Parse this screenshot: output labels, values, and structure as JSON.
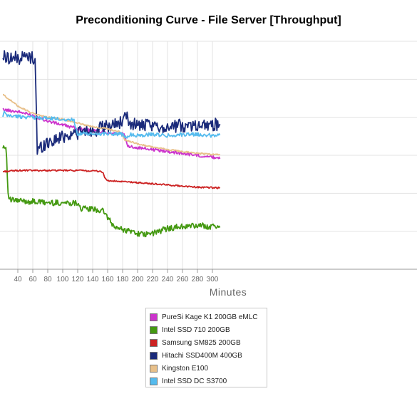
{
  "chart_data": {
    "type": "line",
    "title": "Preconditioning Curve - File Server [Throughput]",
    "xlabel": "Minutes",
    "ylabel": "",
    "x_ticks": [
      40,
      60,
      80,
      100,
      120,
      140,
      160,
      180,
      200,
      220,
      240,
      260,
      280,
      300
    ],
    "xlim": [
      20,
      310
    ],
    "ylim": [
      0,
      6
    ],
    "grid": true,
    "legend_position": "bottom-center",
    "series": [
      {
        "name": "PureSi Kage K1 200GB eMLC",
        "color": "#cc33cc",
        "points": [
          [
            20,
            4.2
          ],
          [
            40,
            4.15
          ],
          [
            60,
            4.05
          ],
          [
            80,
            3.9
          ],
          [
            100,
            3.8
          ],
          [
            120,
            3.7
          ],
          [
            140,
            3.65
          ],
          [
            160,
            3.6
          ],
          [
            182,
            3.55
          ],
          [
            186,
            3.25
          ],
          [
            200,
            3.2
          ],
          [
            220,
            3.15
          ],
          [
            240,
            3.1
          ],
          [
            260,
            3.05
          ],
          [
            280,
            3.0
          ],
          [
            300,
            2.95
          ],
          [
            310,
            2.93
          ]
        ]
      },
      {
        "name": "Intel SSD 710 200GB",
        "color": "#449911",
        "points": [
          [
            20,
            3.25
          ],
          [
            24,
            3.2
          ],
          [
            25,
            3.0
          ],
          [
            26,
            2.5
          ],
          [
            27,
            1.95
          ],
          [
            30,
            1.82
          ],
          [
            40,
            1.8
          ],
          [
            60,
            1.78
          ],
          [
            80,
            1.75
          ],
          [
            100,
            1.75
          ],
          [
            121,
            1.75
          ],
          [
            124,
            1.6
          ],
          [
            140,
            1.58
          ],
          [
            150,
            1.55
          ],
          [
            156,
            1.5
          ],
          [
            165,
            1.2
          ],
          [
            170,
            1.1
          ],
          [
            180,
            1.05
          ],
          [
            190,
            1.0
          ],
          [
            200,
            0.95
          ],
          [
            210,
            0.9
          ],
          [
            220,
            0.95
          ],
          [
            230,
            1.0
          ],
          [
            240,
            1.08
          ],
          [
            260,
            1.12
          ],
          [
            280,
            1.15
          ],
          [
            300,
            1.12
          ],
          [
            310,
            1.14
          ]
        ]
      },
      {
        "name": "Samsung SM825 200GB",
        "color": "#cc2222",
        "points": [
          [
            20,
            2.57
          ],
          [
            40,
            2.6
          ],
          [
            80,
            2.6
          ],
          [
            120,
            2.6
          ],
          [
            150,
            2.58
          ],
          [
            154,
            2.55
          ],
          [
            156,
            2.4
          ],
          [
            160,
            2.33
          ],
          [
            200,
            2.28
          ],
          [
            240,
            2.22
          ],
          [
            280,
            2.16
          ],
          [
            310,
            2.14
          ]
        ]
      },
      {
        "name": "Hitachi SSD400M 400GB",
        "color": "#1a2a7a",
        "points": [
          [
            20,
            5.6
          ],
          [
            40,
            5.55
          ],
          [
            50,
            5.6
          ],
          [
            63,
            5.55
          ],
          [
            64,
            4.8
          ],
          [
            66,
            3.1
          ],
          [
            70,
            3.2
          ],
          [
            80,
            3.35
          ],
          [
            90,
            3.4
          ],
          [
            100,
            3.5
          ],
          [
            120,
            3.6
          ],
          [
            140,
            3.65
          ],
          [
            160,
            3.75
          ],
          [
            180,
            3.9
          ],
          [
            185,
            4.0
          ],
          [
            190,
            3.85
          ],
          [
            200,
            3.8
          ],
          [
            220,
            3.75
          ],
          [
            240,
            3.75
          ],
          [
            260,
            3.78
          ],
          [
            280,
            3.8
          ],
          [
            300,
            3.82
          ],
          [
            310,
            3.8
          ]
        ]
      },
      {
        "name": "Kingston E100",
        "color": "#e8c08a",
        "points": [
          [
            20,
            4.6
          ],
          [
            30,
            4.45
          ],
          [
            40,
            4.3
          ],
          [
            60,
            4.1
          ],
          [
            80,
            4.0
          ],
          [
            100,
            3.95
          ],
          [
            120,
            3.85
          ],
          [
            140,
            3.75
          ],
          [
            160,
            3.7
          ],
          [
            175,
            3.62
          ],
          [
            180,
            3.55
          ],
          [
            183,
            3.4
          ],
          [
            200,
            3.3
          ],
          [
            220,
            3.22
          ],
          [
            240,
            3.15
          ],
          [
            260,
            3.1
          ],
          [
            280,
            3.05
          ],
          [
            300,
            3.02
          ],
          [
            310,
            3.02
          ]
        ]
      },
      {
        "name": "Intel SSD DC S3700",
        "color": "#55bbee",
        "points": [
          [
            20,
            4.0
          ],
          [
            22,
            4.15
          ],
          [
            24,
            4.05
          ],
          [
            40,
            4.02
          ],
          [
            60,
            4.0
          ],
          [
            80,
            3.97
          ],
          [
            100,
            3.95
          ],
          [
            115,
            3.93
          ],
          [
            120,
            3.55
          ],
          [
            125,
            3.57
          ],
          [
            140,
            3.55
          ],
          [
            160,
            3.58
          ],
          [
            180,
            3.55
          ],
          [
            185,
            3.45
          ],
          [
            190,
            3.55
          ],
          [
            200,
            3.52
          ],
          [
            220,
            3.55
          ],
          [
            240,
            3.52
          ],
          [
            260,
            3.55
          ],
          [
            280,
            3.55
          ],
          [
            300,
            3.52
          ],
          [
            310,
            3.55
          ]
        ]
      }
    ]
  }
}
